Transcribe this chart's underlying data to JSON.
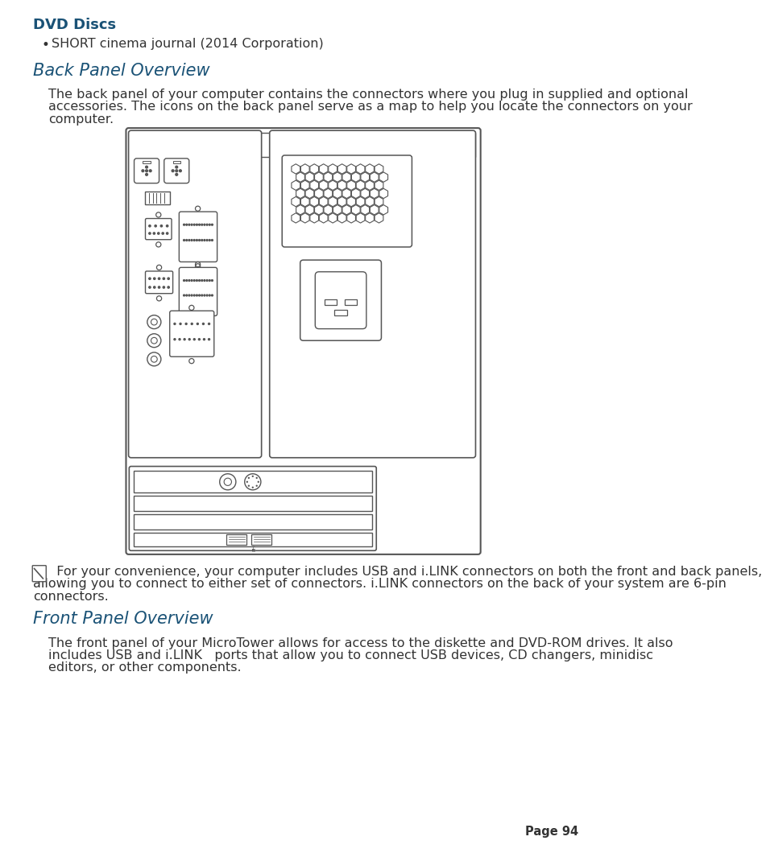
{
  "page_bg": "#ffffff",
  "title1": "DVD Discs",
  "title1_color": "#1a5276",
  "bullet1": "SHORT cinema journal (2014 Corporation)",
  "title2": "Back Panel Overview",
  "title2_color": "#1a5276",
  "body1_line1": "The back panel of your computer contains the connectors where you plug in supplied and optional",
  "body1_line2": "accessories. The icons on the back panel serve as a map to help you locate the connectors on your",
  "body1_line3": "computer.",
  "note_line1": "  For your convenience, your computer includes USB and i.LINK connectors on both the front and back panels,",
  "note_line2": "allowing you to connect to either set of connectors. i.LINK connectors on the back of your system are 6-pin",
  "note_line3": "connectors.",
  "title3": "Front Panel Overview",
  "title3_color": "#1a5276",
  "body2_line1": "The front panel of your MicroTower allows for access to the diskette and DVD-ROM drives. It also",
  "body2_line2": "includes USB and i.LINK   ports that allow you to connect USB devices, CD changers, minidisc",
  "body2_line3": "editors, or other components.",
  "page_num": "Page 94",
  "lc": "#555555",
  "lc2": "#888888"
}
